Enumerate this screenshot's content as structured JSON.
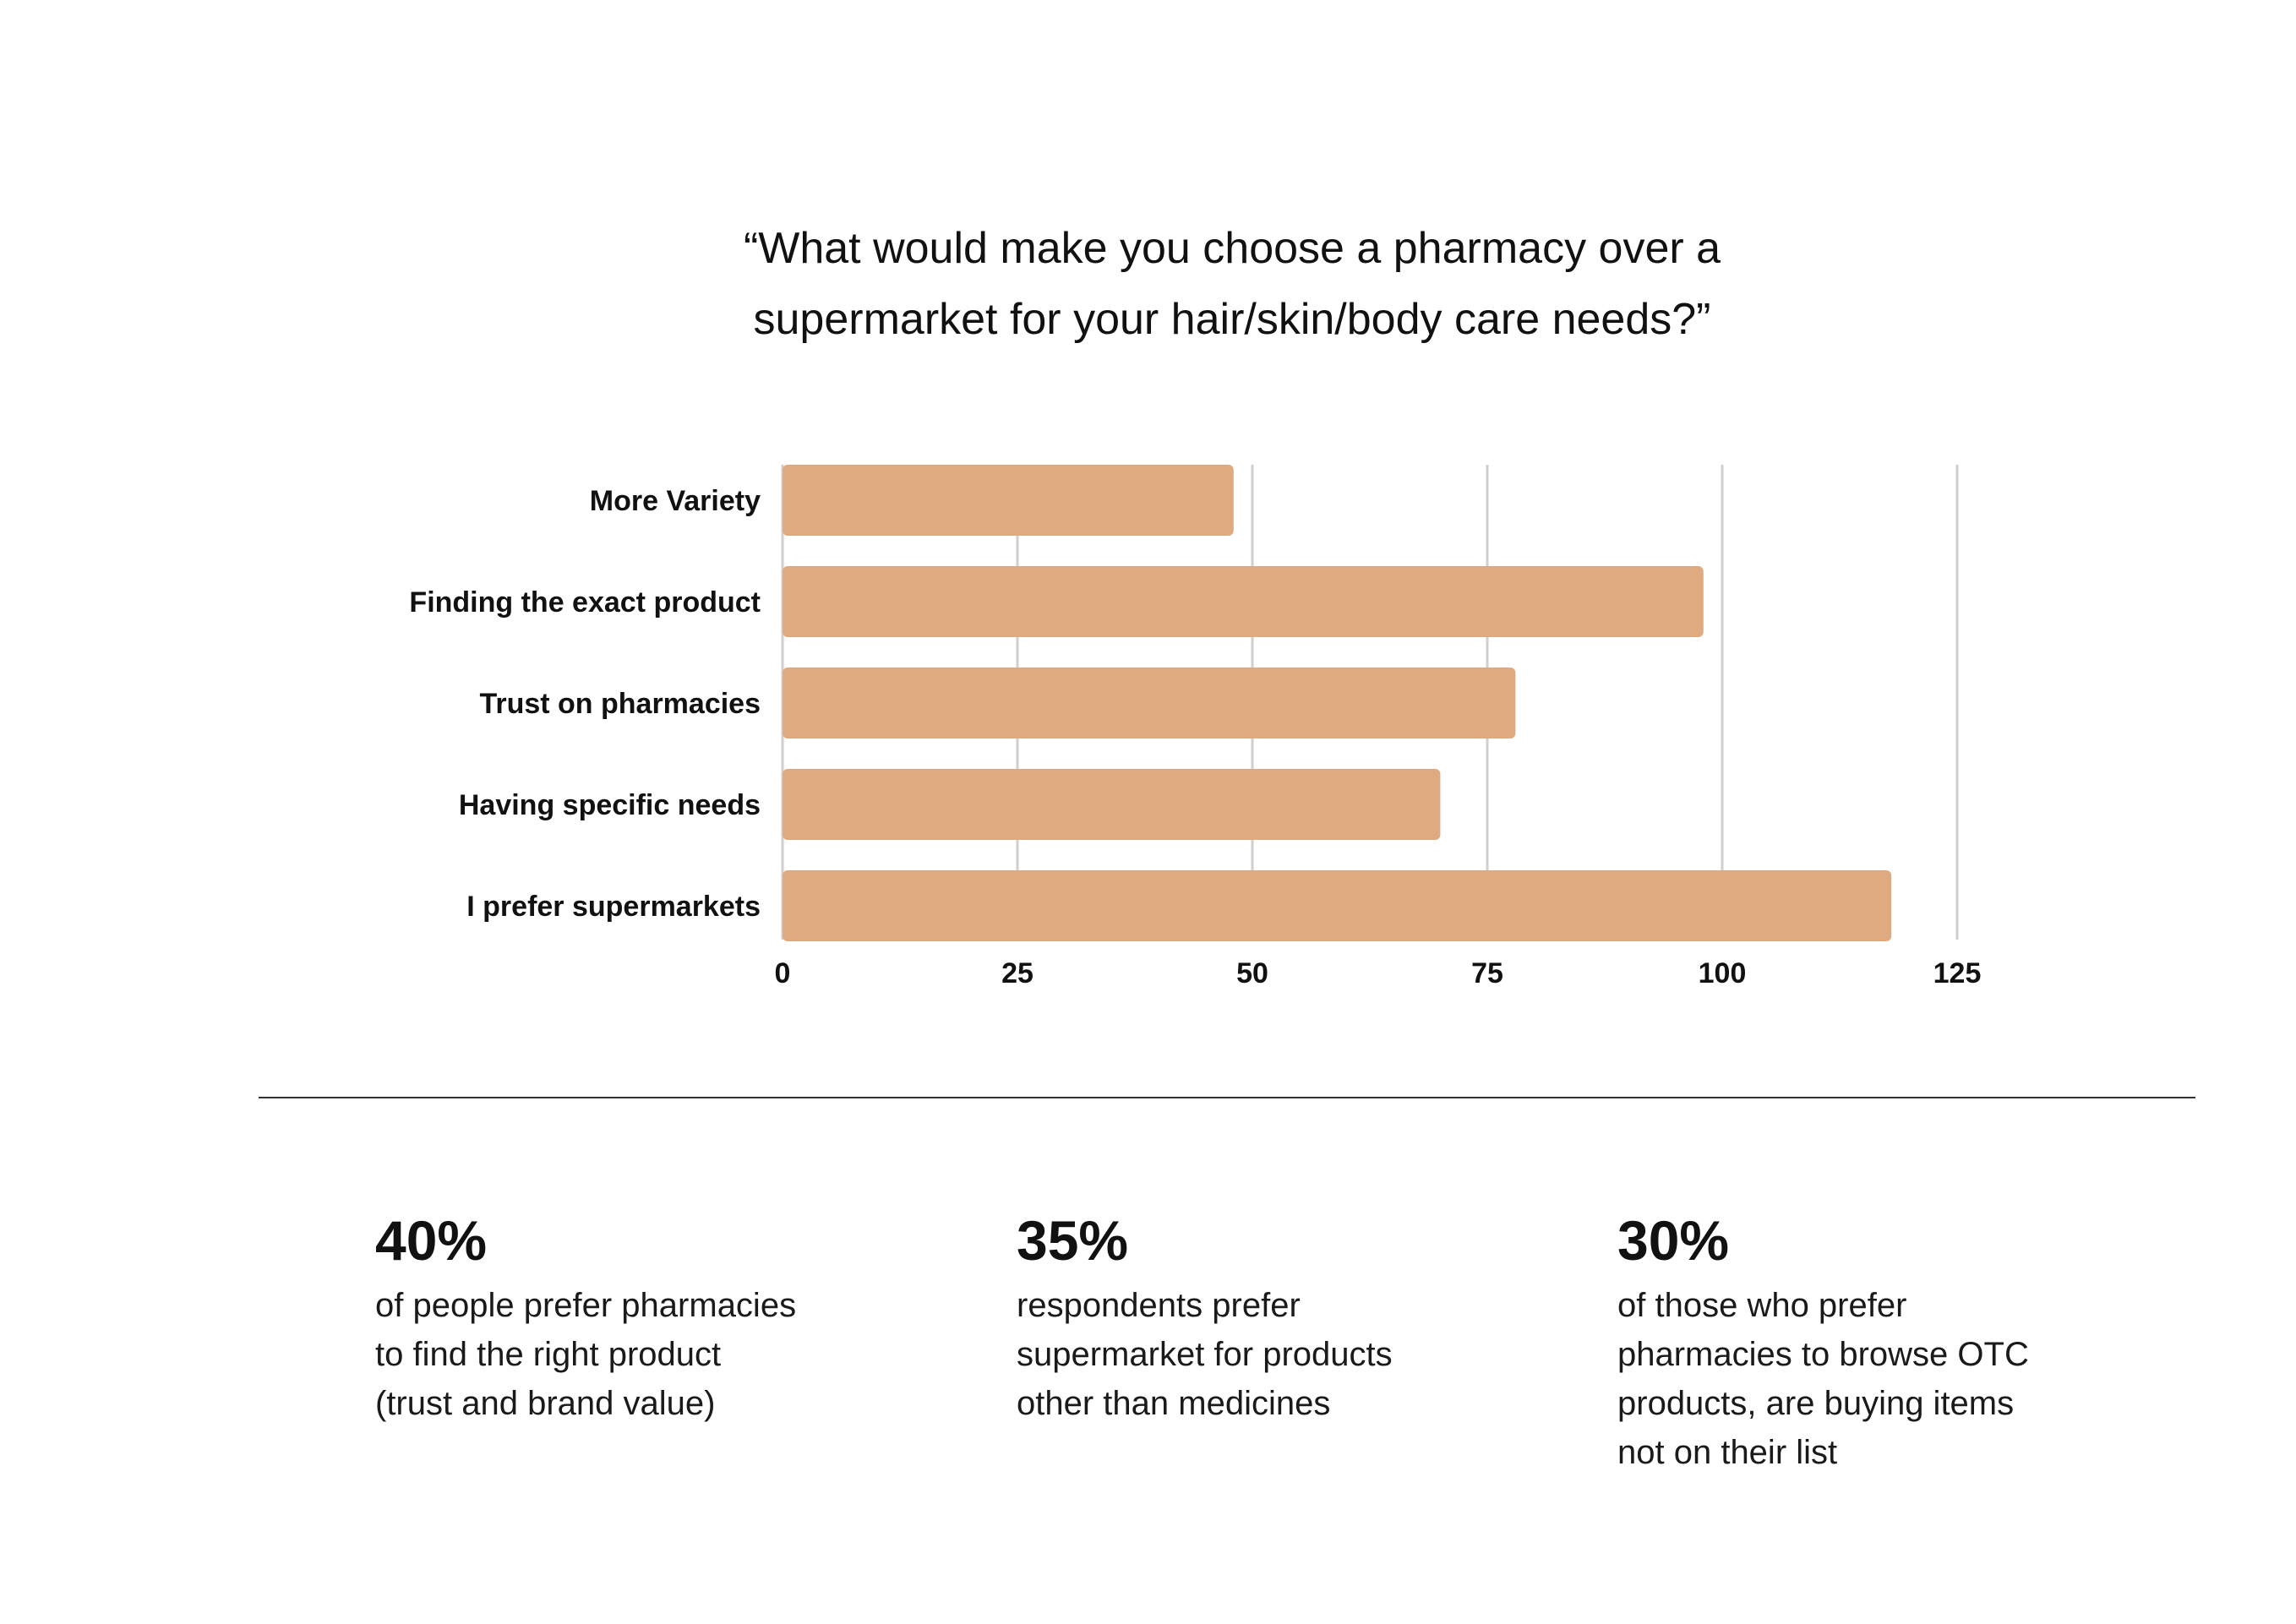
{
  "title": {
    "line1": "“What would make you choose a pharmacy over a",
    "line2": "supermarket for your hair/skin/body care needs?”"
  },
  "chart_data": {
    "type": "bar",
    "orientation": "horizontal",
    "categories": [
      "More Variety",
      "Finding the exact product",
      "Trust on pharmacies",
      "Having specific needs",
      "I prefer supermarkets"
    ],
    "values": [
      48,
      98,
      78,
      70,
      118
    ],
    "xlim": [
      0,
      125
    ],
    "xticks": [
      "0",
      "25",
      "50",
      "75",
      "100",
      "125"
    ],
    "grid": true,
    "bar_color": "#dfaa80",
    "grid_color": "#cfcfcf"
  },
  "stats": [
    {
      "value": "40%",
      "lines": [
        "of people prefer pharmacies",
        "to find the right product",
        "(trust and brand value)"
      ]
    },
    {
      "value": "35%",
      "lines": [
        "respondents prefer",
        "supermarket for products",
        "other than medicines"
      ]
    },
    {
      "value": "30%",
      "lines": [
        "of those who prefer",
        "pharmacies to browse OTC",
        "products, are buying items",
        "not on their list"
      ]
    }
  ]
}
